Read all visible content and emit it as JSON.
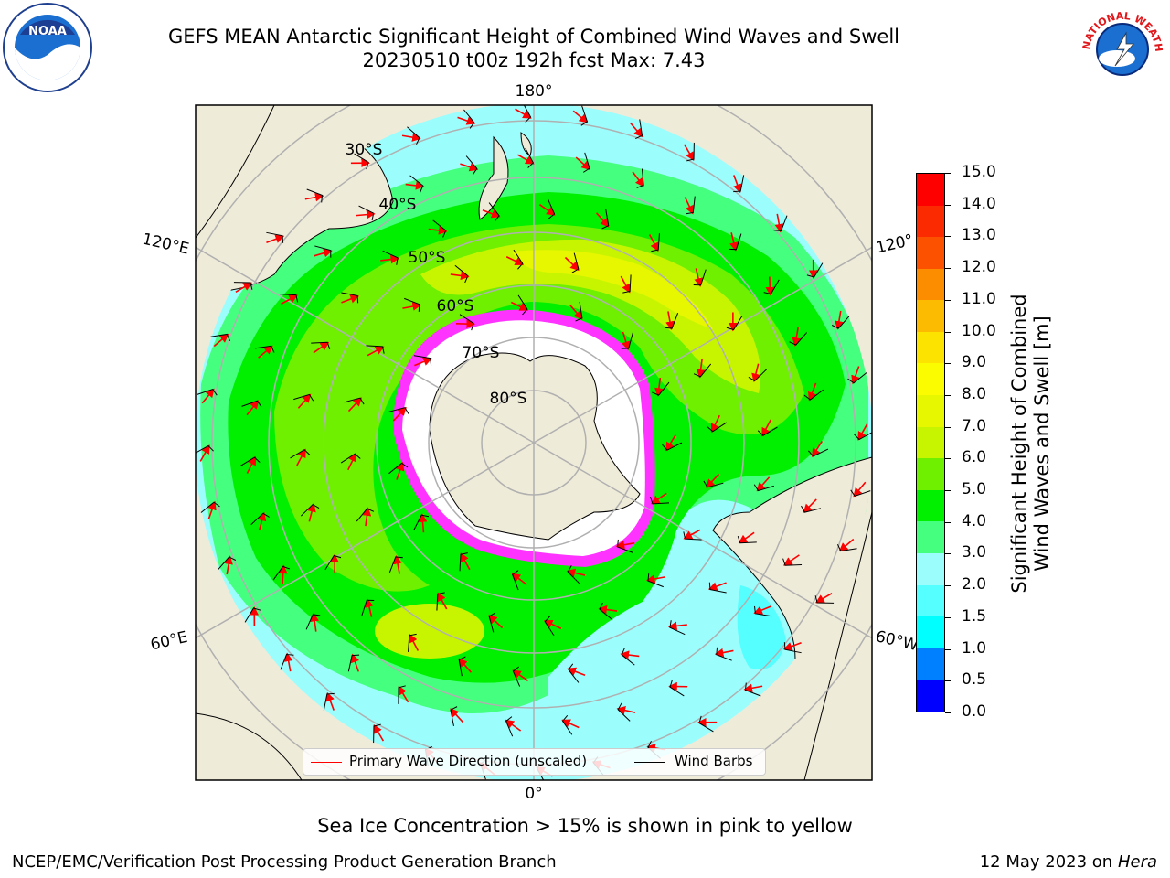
{
  "title": {
    "line1": "GEFS MEAN Antarctic Significant Height of Combined Wind Waves and Swell",
    "line2": "20230510 t00z 192h fcst   Max: 7.43"
  },
  "logos": {
    "noaa": {
      "text": "NOAA",
      "icon": "noaa-logo"
    },
    "nws": {
      "text": "NATIONAL WEATHER SERVICE",
      "icon": "nws-logo"
    }
  },
  "map": {
    "projection": "south-polar-stereographic",
    "longitude_labels": [
      "180°",
      "120°E",
      "120°",
      "60°E",
      "60°W",
      "0°"
    ],
    "latitude_labels": [
      "30°S",
      "40°S",
      "50°S",
      "60°S",
      "70°S",
      "80°S"
    ],
    "colors": {
      "land": "#efebd9",
      "ocean_low": "#9cfdfd",
      "ice": "#ff33ff"
    }
  },
  "legend": {
    "wave_direction": "Primary Wave Direction (unscaled)",
    "wind_barbs": "Wind Barbs",
    "wave_color": "#ff0000",
    "barb_color": "#000000"
  },
  "colorbar": {
    "label_line1": "Significant Height of Combined",
    "label_line2": "Wind Waves and Swell [m]",
    "ticks": [
      "0.0",
      "0.5",
      "1.0",
      "1.5",
      "2.0",
      "3.0",
      "4.0",
      "5.0",
      "6.0",
      "7.0",
      "8.0",
      "9.0",
      "10.0",
      "11.0",
      "12.0",
      "13.0",
      "14.0",
      "15.0"
    ],
    "colors": [
      "#0000ff",
      "#0080ff",
      "#00ffff",
      "#55ffff",
      "#9cfdfd",
      "#45ff7e",
      "#00f000",
      "#6ef000",
      "#c7f500",
      "#e6f700",
      "#fcfc00",
      "#fce300",
      "#fcbb00",
      "#fc8c00",
      "#fc5200",
      "#fc2a00",
      "#ff0000"
    ]
  },
  "caption": "Sea Ice Concentration > 15% is shown in pink to yellow",
  "footer": {
    "left": "NCEP/EMC/Verification Post Processing Product Generation Branch",
    "right_date": "12 May 2023 on",
    "right_host": "Hera"
  }
}
